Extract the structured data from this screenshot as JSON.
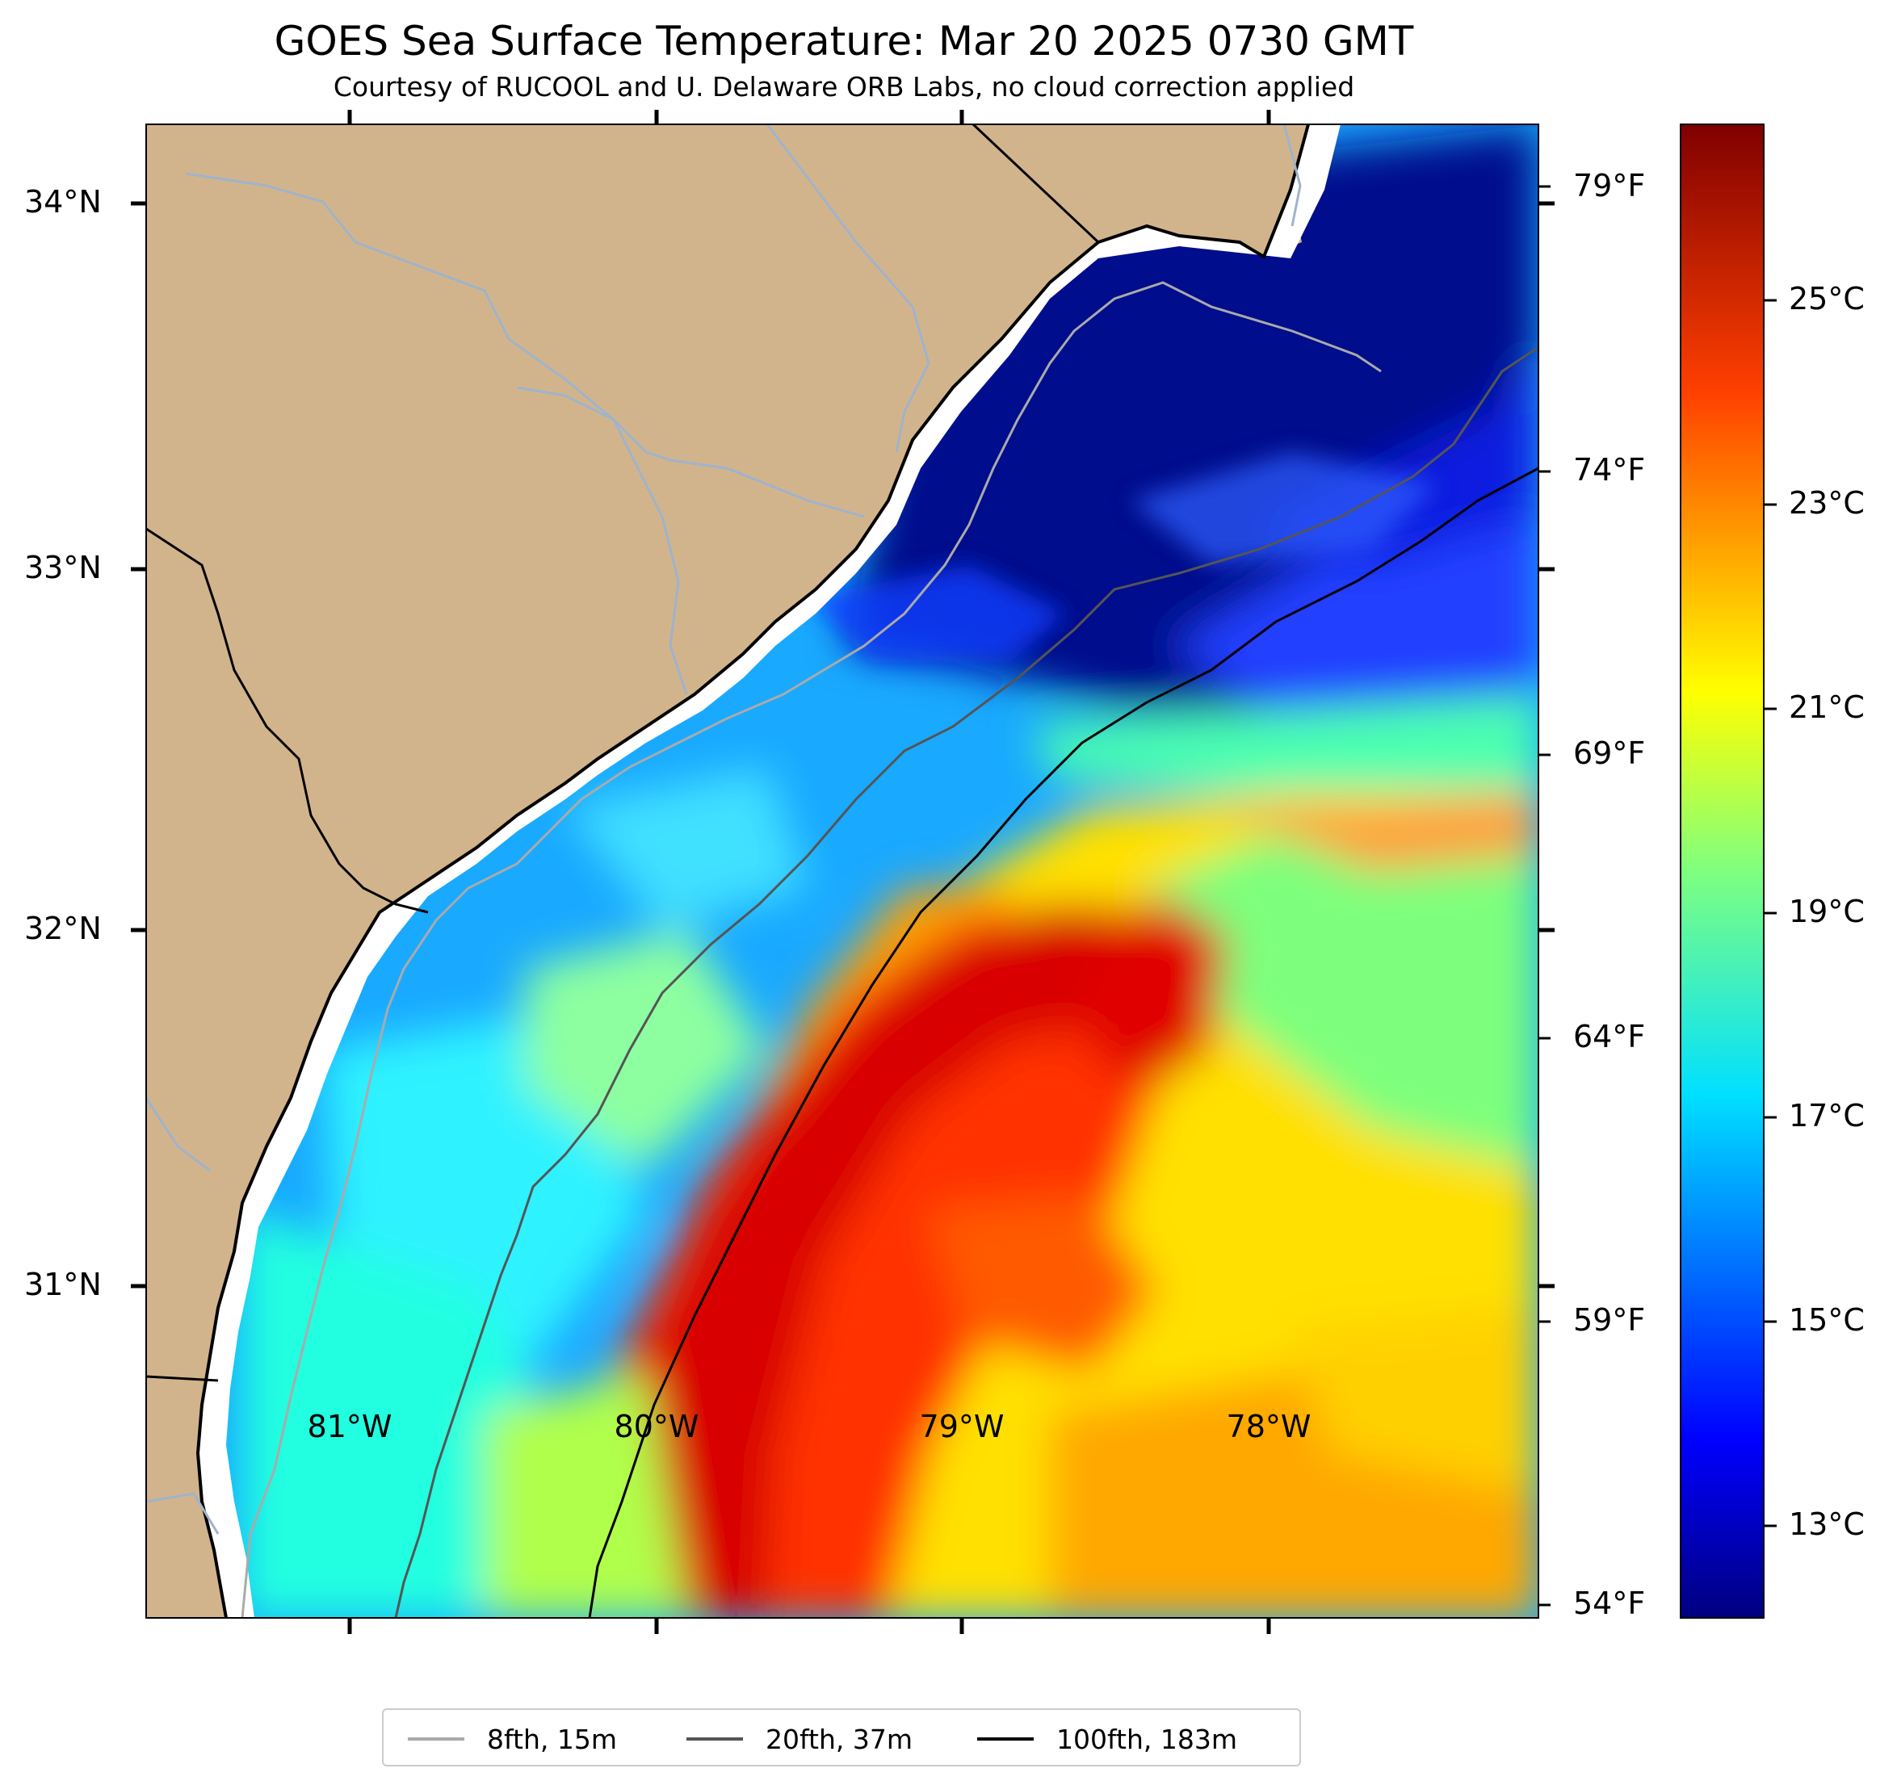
{
  "title": "GOES Sea Surface Temperature: Mar 20 2025 0730 GMT",
  "subtitle": "Courtesy of RUCOOL and U. Delaware ORB Labs, no cloud correction applied",
  "map": {
    "land_color": "#d2b48c",
    "river_color": "#9fb3cc",
    "coastline_color": "#000000",
    "latitude_labels": [
      "34°N",
      "33°N",
      "32°N",
      "31°N"
    ],
    "longitude_labels": [
      "81°W",
      "80°W",
      "79°W",
      "78°W"
    ]
  },
  "temperature_axis_f": {
    "labels": [
      "79°F",
      "74°F",
      "69°F",
      "64°F",
      "59°F",
      "54°F"
    ]
  },
  "colorbar": {
    "colormap": "jet",
    "min_c": 12,
    "max_c": 27,
    "labels": [
      "25°C",
      "23°C",
      "21°C",
      "19°C",
      "17°C",
      "15°C",
      "13°C"
    ]
  },
  "legend": [
    {
      "label": "8fth, 15m",
      "color": "#aaaaaa"
    },
    {
      "label": "20fth, 37m",
      "color": "#555555"
    },
    {
      "label": "100fth, 183m",
      "color": "#000000"
    }
  ]
}
